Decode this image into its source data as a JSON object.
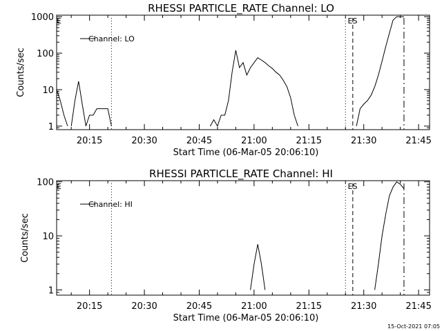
{
  "colors": {
    "background": "#ffffff",
    "foreground": "#000000"
  },
  "footer_timestamp": "15-Oct-2021 07:05",
  "chart_data": [
    {
      "type": "line",
      "title": "RHESSI PARTICLE_RATE Channel: LO",
      "xlabel": "Start Time (06-Mar-05 20:06:10)",
      "ylabel": "Counts/sec",
      "yscale": "log",
      "xlim": [
        "20:06",
        "21:48"
      ],
      "ylim": [
        0.8,
        1100
      ],
      "x_ticks": [
        "20:15",
        "20:30",
        "20:45",
        "21:00",
        "21:15",
        "21:30",
        "21:45"
      ],
      "y_ticks": [
        "1",
        "10",
        "100",
        "1000"
      ],
      "legend": {
        "position": "top-left",
        "entries": [
          "Channel: LO"
        ]
      },
      "flags": [
        {
          "label": "E",
          "time": "20:06"
        },
        {
          "label": "ES",
          "time": "21:26"
        }
      ],
      "markers": [
        {
          "time": "20:21",
          "style": "dotted"
        },
        {
          "time": "21:25",
          "style": "dotted"
        },
        {
          "time": "21:27",
          "style": "dashed"
        },
        {
          "time": "21:41",
          "style": "dashdot"
        }
      ],
      "series": [
        {
          "segments": [
            [
              [
                "20:06",
                10
              ],
              [
                "20:07",
                5
              ],
              [
                "20:08",
                2
              ],
              [
                "20:09",
                1
              ]
            ],
            [
              [
                "20:10",
                1
              ],
              [
                "20:11",
                5
              ],
              [
                "20:12",
                17
              ],
              [
                "20:13",
                4
              ],
              [
                "20:14",
                1
              ]
            ],
            [
              [
                "20:14",
                1
              ],
              [
                "20:15",
                2
              ],
              [
                "20:16",
                2
              ],
              [
                "20:17",
                3
              ],
              [
                "20:18",
                3
              ],
              [
                "20:19",
                3
              ],
              [
                "20:20",
                3
              ],
              [
                "20:21",
                1
              ]
            ],
            [
              [
                "20:48",
                1
              ],
              [
                "20:49",
                1.5
              ],
              [
                "20:50",
                1
              ],
              [
                "20:51",
                2
              ]
            ],
            [
              [
                "20:51",
                2
              ],
              [
                "20:52",
                2
              ],
              [
                "20:53",
                5
              ],
              [
                "20:54",
                30
              ],
              [
                "20:55",
                120
              ],
              [
                "20:56",
                40
              ],
              [
                "20:57",
                55
              ],
              [
                "20:58",
                25
              ],
              [
                "20:59",
                40
              ],
              [
                "21:00",
                55
              ],
              [
                "21:01",
                75
              ],
              [
                "21:02",
                65
              ],
              [
                "21:03",
                55
              ],
              [
                "21:04",
                45
              ],
              [
                "21:05",
                38
              ],
              [
                "21:06",
                30
              ],
              [
                "21:07",
                25
              ],
              [
                "21:08",
                18
              ],
              [
                "21:09",
                12
              ],
              [
                "21:10",
                6
              ],
              [
                "21:11",
                2
              ],
              [
                "21:12",
                1
              ]
            ],
            [
              [
                "21:28",
                1
              ],
              [
                "21:29",
                3
              ],
              [
                "21:30",
                4
              ],
              [
                "21:31",
                5
              ],
              [
                "21:32",
                7
              ],
              [
                "21:33",
                12
              ],
              [
                "21:34",
                25
              ],
              [
                "21:35",
                60
              ],
              [
                "21:36",
                150
              ],
              [
                "21:37",
                350
              ],
              [
                "21:38",
                800
              ],
              [
                "21:39",
                1000
              ],
              [
                "21:40",
                1000
              ],
              [
                "21:41",
                1000
              ]
            ]
          ]
        }
      ]
    },
    {
      "type": "line",
      "title": "RHESSI PARTICLE_RATE Channel: HI",
      "xlabel": "Start Time (06-Mar-05 20:06:10)",
      "ylabel": "Counts/sec",
      "yscale": "log",
      "xlim": [
        "20:06",
        "21:48"
      ],
      "ylim": [
        0.8,
        105
      ],
      "x_ticks": [
        "20:15",
        "20:30",
        "20:45",
        "21:00",
        "21:15",
        "21:30",
        "21:45"
      ],
      "y_ticks": [
        "1",
        "10",
        "100"
      ],
      "legend": {
        "position": "top-left",
        "entries": [
          "Channel: HI"
        ]
      },
      "flags": [
        {
          "label": "E",
          "time": "20:06"
        },
        {
          "label": "ES",
          "time": "21:26"
        }
      ],
      "markers": [
        {
          "time": "20:21",
          "style": "dotted"
        },
        {
          "time": "21:25",
          "style": "dotted"
        },
        {
          "time": "21:27",
          "style": "dashed"
        },
        {
          "time": "21:41",
          "style": "dashdot"
        }
      ],
      "series": [
        {
          "segments": [
            [
              [
                "20:59",
                1
              ],
              [
                "21:00",
                3
              ],
              [
                "21:01",
                7
              ],
              [
                "21:02",
                3
              ],
              [
                "21:03",
                1
              ]
            ],
            [
              [
                "21:33",
                1
              ],
              [
                "21:34",
                3
              ],
              [
                "21:35",
                10
              ],
              [
                "21:36",
                25
              ],
              [
                "21:37",
                55
              ],
              [
                "21:38",
                80
              ],
              [
                "21:39",
                100
              ],
              [
                "21:40",
                90
              ],
              [
                "21:41",
                75
              ]
            ]
          ]
        }
      ]
    }
  ]
}
